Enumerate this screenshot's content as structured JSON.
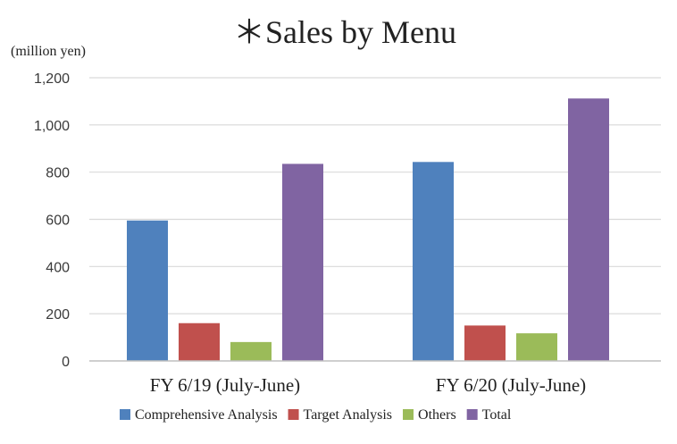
{
  "chart_data": {
    "type": "bar",
    "title": "＊Sales by Menu",
    "unit_label": "(million yen)",
    "categories": [
      "FY 6/19 (July-June)",
      "FY 6/20 (July-June)"
    ],
    "series": [
      {
        "name": "Comprehensive Analysis",
        "color": "#4f81bd",
        "values": [
          595,
          843
        ]
      },
      {
        "name": "Target Analysis",
        "color": "#c0504d",
        "values": [
          160,
          150
        ]
      },
      {
        "name": "Others",
        "color": "#9bbb59",
        "values": [
          80,
          117
        ]
      },
      {
        "name": "Total",
        "color": "#8064a2",
        "values": [
          835,
          1112
        ]
      }
    ],
    "ylim": [
      0,
      1200
    ],
    "y_ticks": [
      0,
      200,
      400,
      600,
      800,
      1000,
      1200
    ],
    "y_tick_labels": [
      "0",
      "200",
      "400",
      "600",
      "800",
      "1,000",
      "1,200"
    ],
    "grid": true,
    "legend_position": "bottom"
  }
}
